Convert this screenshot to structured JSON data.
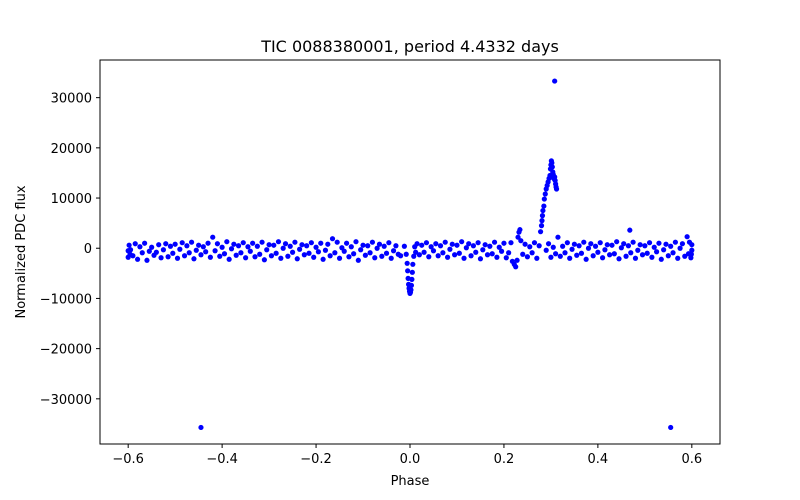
{
  "chart_data": {
    "type": "scatter",
    "title": "TIC 0088380001, period 4.4332 days",
    "xlabel": "Phase",
    "ylabel": "Normalized PDC flux",
    "xlim": [
      -0.66,
      0.66
    ],
    "ylim": [
      -39000,
      37500
    ],
    "xticks": [
      -0.6,
      -0.4,
      -0.2,
      0.0,
      0.2,
      0.4,
      0.6
    ],
    "xtick_labels": [
      "−0.6",
      "−0.4",
      "−0.2",
      "0.0",
      "0.2",
      "0.4",
      "0.6"
    ],
    "yticks": [
      -30000,
      -20000,
      -10000,
      0,
      10000,
      20000,
      30000
    ],
    "ytick_labels": [
      "−30000",
      "−20000",
      "−10000",
      "0",
      "10000",
      "20000",
      "30000"
    ],
    "marker_color": "#0000ff",
    "series": [
      {
        "name": "flux",
        "points": [
          [
            -0.445,
            -35700
          ],
          [
            0.555,
            -35700
          ],
          [
            0.308,
            33300
          ],
          [
            -0.6,
            -500
          ],
          [
            -0.598,
            600
          ],
          [
            -0.596,
            -1200
          ],
          [
            -0.6,
            -1800
          ],
          [
            -0.595,
            -300
          ],
          [
            -0.59,
            -1500
          ],
          [
            -0.585,
            900
          ],
          [
            -0.58,
            -2200
          ],
          [
            -0.575,
            300
          ],
          [
            -0.57,
            -900
          ],
          [
            -0.565,
            1000
          ],
          [
            -0.56,
            -2400
          ],
          [
            -0.555,
            -600
          ],
          [
            -0.55,
            200
          ],
          [
            -0.545,
            -1400
          ],
          [
            -0.54,
            -800
          ],
          [
            -0.535,
            700
          ],
          [
            -0.53,
            -1900
          ],
          [
            -0.525,
            -300
          ],
          [
            -0.52,
            900
          ],
          [
            -0.515,
            -1700
          ],
          [
            -0.51,
            400
          ],
          [
            -0.505,
            -1000
          ],
          [
            -0.5,
            800
          ],
          [
            -0.495,
            -2000
          ],
          [
            -0.49,
            -200
          ],
          [
            -0.485,
            1100
          ],
          [
            -0.48,
            -1500
          ],
          [
            -0.475,
            500
          ],
          [
            -0.47,
            -900
          ],
          [
            -0.465,
            1200
          ],
          [
            -0.46,
            -2100
          ],
          [
            -0.455,
            -400
          ],
          [
            -0.45,
            600
          ],
          [
            -0.445,
            -1300
          ],
          [
            -0.44,
            300
          ],
          [
            -0.435,
            -700
          ],
          [
            -0.43,
            1000
          ],
          [
            -0.425,
            -1800
          ],
          [
            -0.42,
            2200
          ],
          [
            -0.415,
            -500
          ],
          [
            -0.41,
            900
          ],
          [
            -0.405,
            -1600
          ],
          [
            -0.4,
            200
          ],
          [
            -0.395,
            -1100
          ],
          [
            -0.39,
            1300
          ],
          [
            -0.385,
            -2200
          ],
          [
            -0.38,
            -100
          ],
          [
            -0.375,
            800
          ],
          [
            -0.37,
            -1400
          ],
          [
            -0.365,
            500
          ],
          [
            -0.36,
            -900
          ],
          [
            -0.355,
            1100
          ],
          [
            -0.35,
            -1900
          ],
          [
            -0.345,
            300
          ],
          [
            -0.34,
            -600
          ],
          [
            -0.335,
            1000
          ],
          [
            -0.33,
            -1700
          ],
          [
            -0.325,
            400
          ],
          [
            -0.32,
            -1200
          ],
          [
            -0.315,
            1200
          ],
          [
            -0.31,
            -2300
          ],
          [
            -0.305,
            -300
          ],
          [
            -0.3,
            700
          ],
          [
            -0.295,
            -1500
          ],
          [
            -0.29,
            600
          ],
          [
            -0.285,
            -1000
          ],
          [
            -0.28,
            1300
          ],
          [
            -0.275,
            -2000
          ],
          [
            -0.27,
            0
          ],
          [
            -0.265,
            900
          ],
          [
            -0.26,
            -1600
          ],
          [
            -0.255,
            400
          ],
          [
            -0.25,
            -800
          ],
          [
            -0.245,
            1200
          ],
          [
            -0.24,
            -2100
          ],
          [
            -0.235,
            -200
          ],
          [
            -0.23,
            700
          ],
          [
            -0.225,
            -1300
          ],
          [
            -0.22,
            500
          ],
          [
            -0.215,
            -1000
          ],
          [
            -0.21,
            1100
          ],
          [
            -0.205,
            -1800
          ],
          [
            -0.2,
            200
          ],
          [
            -0.195,
            -700
          ],
          [
            -0.19,
            1000
          ],
          [
            -0.185,
            -2200
          ],
          [
            -0.18,
            -400
          ],
          [
            -0.175,
            800
          ],
          [
            -0.17,
            -1500
          ],
          [
            -0.165,
            1900
          ],
          [
            -0.16,
            -900
          ],
          [
            -0.155,
            1200
          ],
          [
            -0.15,
            -2000
          ],
          [
            -0.145,
            100
          ],
          [
            -0.14,
            -600
          ],
          [
            -0.135,
            1000
          ],
          [
            -0.13,
            -1700
          ],
          [
            -0.125,
            300
          ],
          [
            -0.12,
            -1100
          ],
          [
            -0.115,
            1300
          ],
          [
            -0.11,
            -2400
          ],
          [
            -0.105,
            -300
          ],
          [
            -0.1,
            600
          ],
          [
            -0.095,
            -1400
          ],
          [
            -0.09,
            500
          ],
          [
            -0.085,
            -900
          ],
          [
            -0.08,
            1200
          ],
          [
            -0.075,
            -1900
          ],
          [
            -0.07,
            0
          ],
          [
            -0.065,
            800
          ],
          [
            -0.06,
            -1600
          ],
          [
            -0.055,
            400
          ],
          [
            -0.05,
            -1000
          ],
          [
            -0.045,
            1100
          ],
          [
            -0.04,
            -2000
          ],
          [
            -0.035,
            -500
          ],
          [
            -0.03,
            500
          ],
          [
            -0.025,
            -1200
          ],
          [
            -0.02,
            -1500
          ],
          [
            -0.012,
            400
          ],
          [
            -0.008,
            -1200
          ],
          [
            -0.006,
            -3000
          ],
          [
            -0.005,
            -4500
          ],
          [
            -0.004,
            -6000
          ],
          [
            -0.003,
            -7200
          ],
          [
            -0.002,
            -8000
          ],
          [
            -0.001,
            -8600
          ],
          [
            0.0,
            -9000
          ],
          [
            0.001,
            -8800
          ],
          [
            0.002,
            -8300
          ],
          [
            0.003,
            -7400
          ],
          [
            0.004,
            -6200
          ],
          [
            0.005,
            -4800
          ],
          [
            0.006,
            -3200
          ],
          [
            0.008,
            -1600
          ],
          [
            0.01,
            300
          ],
          [
            0.012,
            -800
          ],
          [
            0.015,
            900
          ],
          [
            0.02,
            -1300
          ],
          [
            0.025,
            600
          ],
          [
            0.03,
            -800
          ],
          [
            0.035,
            1100
          ],
          [
            0.04,
            -1700
          ],
          [
            0.045,
            300
          ],
          [
            0.05,
            -500
          ],
          [
            0.055,
            900
          ],
          [
            0.06,
            -1500
          ],
          [
            0.065,
            500
          ],
          [
            0.07,
            -900
          ],
          [
            0.075,
            1200
          ],
          [
            0.08,
            -1800
          ],
          [
            0.085,
            -200
          ],
          [
            0.09,
            800
          ],
          [
            0.095,
            -1300
          ],
          [
            0.1,
            600
          ],
          [
            0.105,
            -1000
          ],
          [
            0.11,
            1300
          ],
          [
            0.115,
            -2000
          ],
          [
            0.12,
            100
          ],
          [
            0.125,
            900
          ],
          [
            0.13,
            -1500
          ],
          [
            0.135,
            500
          ],
          [
            0.14,
            -800
          ],
          [
            0.145,
            1100
          ],
          [
            0.15,
            -2100
          ],
          [
            0.155,
            -300
          ],
          [
            0.16,
            700
          ],
          [
            0.165,
            -1300
          ],
          [
            0.17,
            400
          ],
          [
            0.175,
            -1100
          ],
          [
            0.18,
            1200
          ],
          [
            0.185,
            -1800
          ],
          [
            0.19,
            200
          ],
          [
            0.195,
            -600
          ],
          [
            0.2,
            1000
          ],
          [
            0.205,
            -1900
          ],
          [
            0.21,
            -900
          ],
          [
            0.215,
            1100
          ],
          [
            0.218,
            -2600
          ],
          [
            0.222,
            -3200
          ],
          [
            0.225,
            -3700
          ],
          [
            0.228,
            -2400
          ],
          [
            0.23,
            2200
          ],
          [
            0.232,
            3200
          ],
          [
            0.234,
            3700
          ],
          [
            0.236,
            1500
          ],
          [
            0.24,
            -1200
          ],
          [
            0.245,
            800
          ],
          [
            0.25,
            -1700
          ],
          [
            0.255,
            300
          ],
          [
            0.26,
            -900
          ],
          [
            0.265,
            1100
          ],
          [
            0.27,
            -2000
          ],
          [
            0.275,
            500
          ],
          [
            0.278,
            3300
          ],
          [
            0.28,
            4500
          ],
          [
            0.281,
            5500
          ],
          [
            0.282,
            6500
          ],
          [
            0.283,
            7500
          ],
          [
            0.285,
            8400
          ],
          [
            0.286,
            9800
          ],
          [
            0.288,
            10800
          ],
          [
            0.29,
            11800
          ],
          [
            0.292,
            12500
          ],
          [
            0.294,
            13200
          ],
          [
            0.296,
            13900
          ],
          [
            0.298,
            14500
          ],
          [
            0.299,
            15800
          ],
          [
            0.3,
            16600
          ],
          [
            0.301,
            17400
          ],
          [
            0.302,
            17000
          ],
          [
            0.303,
            16200
          ],
          [
            0.304,
            15200
          ],
          [
            0.305,
            14700
          ],
          [
            0.306,
            14000
          ],
          [
            0.307,
            13800
          ],
          [
            0.308,
            14200
          ],
          [
            0.309,
            13500
          ],
          [
            0.31,
            12800
          ],
          [
            0.311,
            12200
          ],
          [
            0.312,
            11800
          ],
          [
            0.29,
            -400
          ],
          [
            0.295,
            900
          ],
          [
            0.3,
            -1800
          ],
          [
            0.305,
            200
          ],
          [
            0.31,
            -1100
          ],
          [
            0.315,
            2200
          ],
          [
            0.32,
            -1600
          ],
          [
            0.325,
            400
          ],
          [
            0.33,
            -900
          ],
          [
            0.335,
            1100
          ],
          [
            0.34,
            -2000
          ],
          [
            0.345,
            -200
          ],
          [
            0.35,
            800
          ],
          [
            0.355,
            -1400
          ],
          [
            0.36,
            500
          ],
          [
            0.365,
            -1000
          ],
          [
            0.37,
            1200
          ],
          [
            0.375,
            -2200
          ],
          [
            0.38,
            0
          ],
          [
            0.385,
            900
          ],
          [
            0.39,
            -1500
          ],
          [
            0.395,
            400
          ],
          [
            0.4,
            -800
          ],
          [
            0.405,
            1100
          ],
          [
            0.41,
            -1900
          ],
          [
            0.415,
            -300
          ],
          [
            0.42,
            700
          ],
          [
            0.425,
            -1300
          ],
          [
            0.43,
            600
          ],
          [
            0.435,
            -1100
          ],
          [
            0.44,
            1300
          ],
          [
            0.445,
            -2100
          ],
          [
            0.45,
            100
          ],
          [
            0.455,
            900
          ],
          [
            0.46,
            -1600
          ],
          [
            0.465,
            500
          ],
          [
            0.468,
            3600
          ],
          [
            0.47,
            -900
          ],
          [
            0.475,
            1200
          ],
          [
            0.48,
            -2000
          ],
          [
            0.485,
            -400
          ],
          [
            0.49,
            700
          ],
          [
            0.495,
            -1300
          ],
          [
            0.5,
            500
          ],
          [
            0.505,
            -1000
          ],
          [
            0.51,
            1100
          ],
          [
            0.515,
            -1800
          ],
          [
            0.52,
            200
          ],
          [
            0.525,
            -700
          ],
          [
            0.53,
            1000
          ],
          [
            0.535,
            -2200
          ],
          [
            0.54,
            -300
          ],
          [
            0.545,
            800
          ],
          [
            0.55,
            -1500
          ],
          [
            0.555,
            400
          ],
          [
            0.56,
            -900
          ],
          [
            0.565,
            1200
          ],
          [
            0.57,
            -2000
          ],
          [
            0.575,
            0
          ],
          [
            0.58,
            900
          ],
          [
            0.585,
            -1600
          ],
          [
            0.59,
            2300
          ],
          [
            0.593,
            -1100
          ],
          [
            0.595,
            1200
          ],
          [
            0.598,
            -1900
          ],
          [
            0.6,
            -400
          ],
          [
            0.6,
            700
          ],
          [
            0.599,
            -1200
          ]
        ]
      }
    ]
  }
}
